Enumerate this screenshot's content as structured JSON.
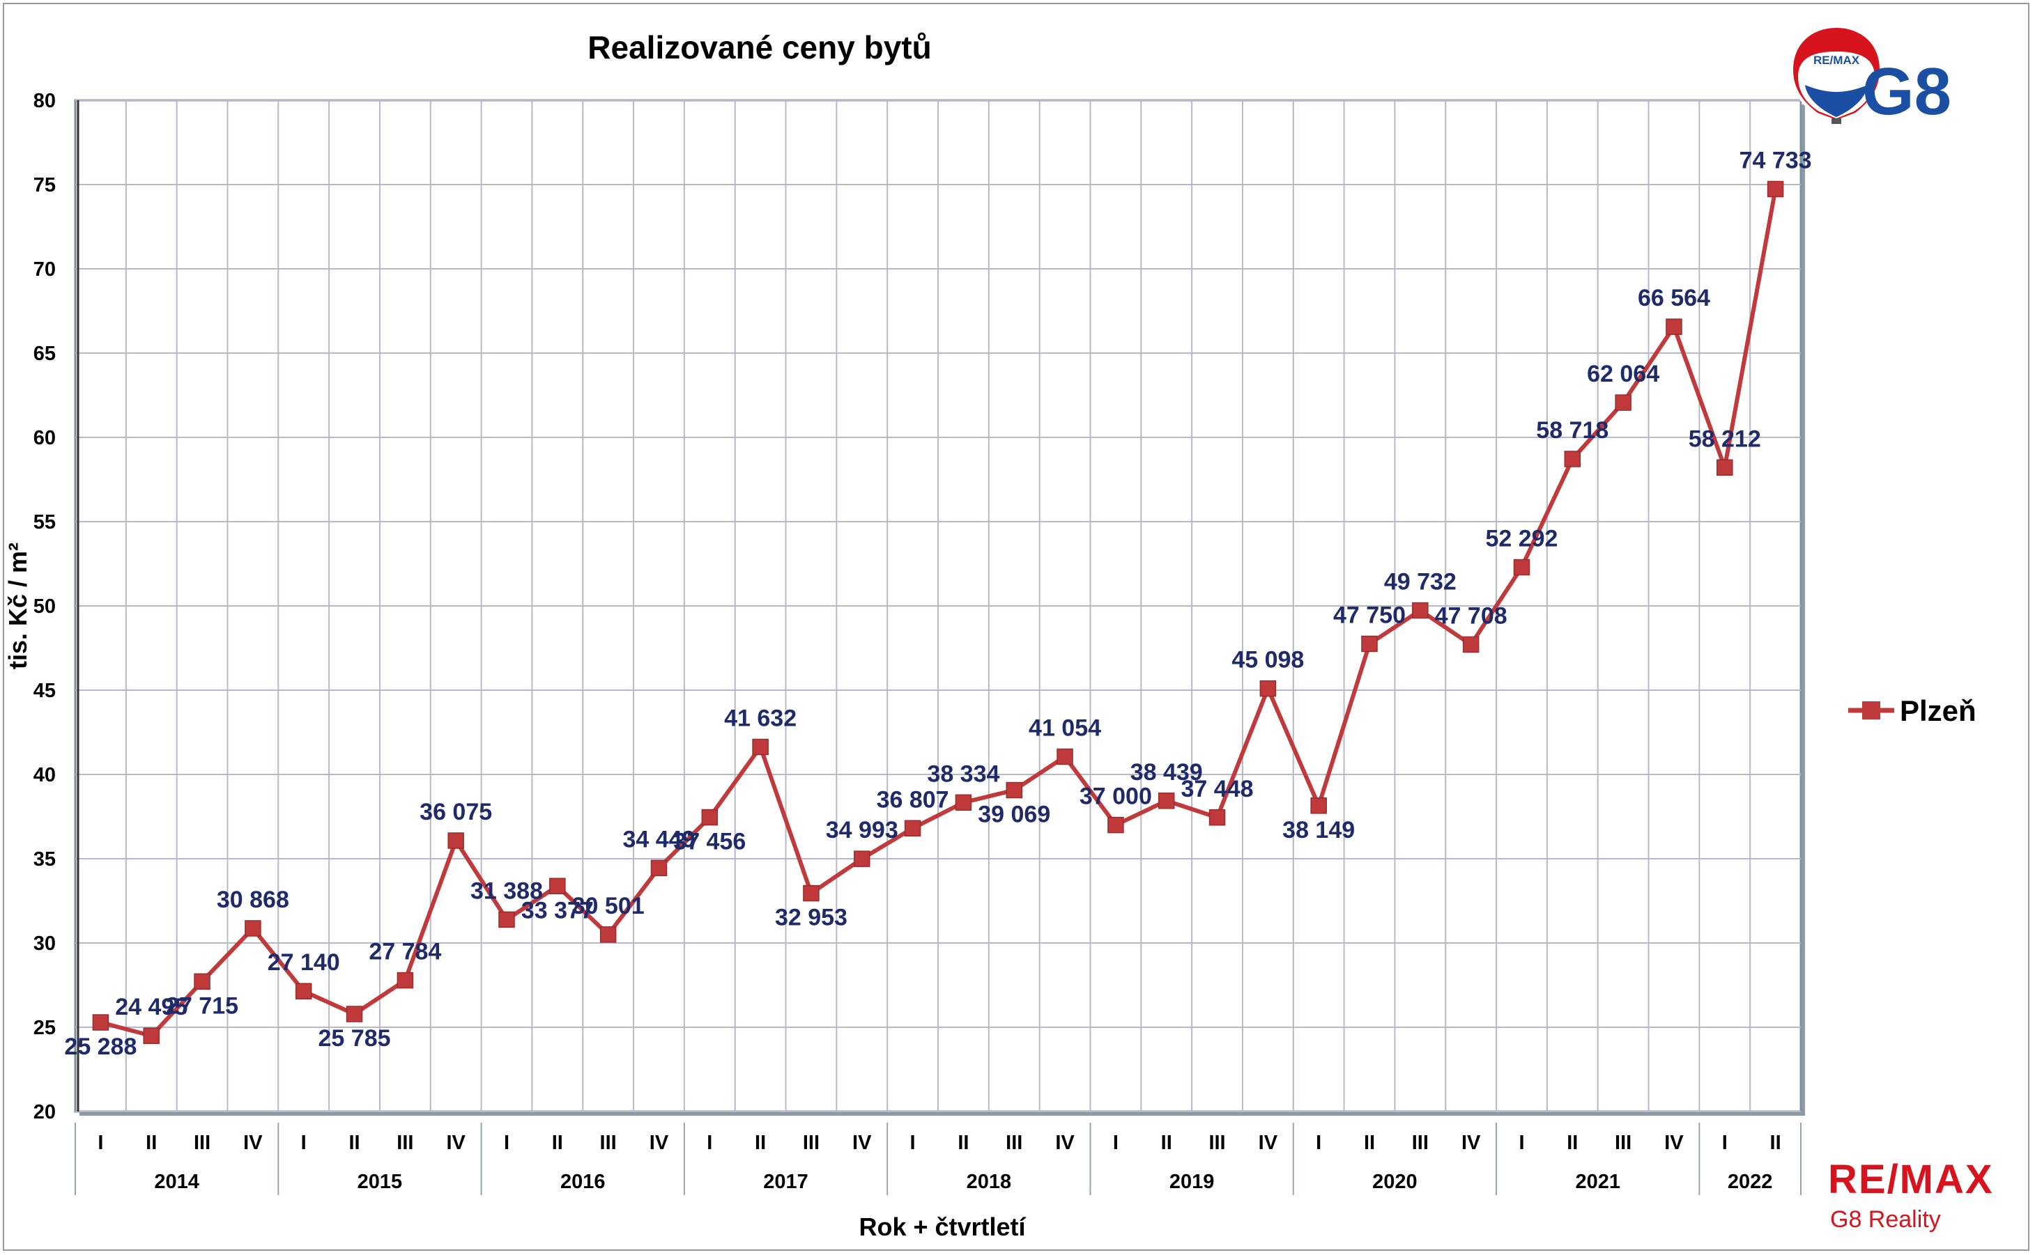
{
  "chart_data": {
    "type": "line",
    "title": "Realizované ceny bytů",
    "xlabel": "Rok + čtvrtletí",
    "ylabel": "tis. Kč / m²",
    "ylim": [
      20,
      80
    ],
    "yticks": [
      "20",
      "25",
      "30",
      "35",
      "40",
      "45",
      "50",
      "55",
      "60",
      "65",
      "70",
      "75",
      "80"
    ],
    "grid": true,
    "legend_position": "right",
    "quarters": [
      "I",
      "II",
      "III",
      "IV",
      "I",
      "II",
      "III",
      "IV",
      "I",
      "II",
      "III",
      "IV",
      "I",
      "II",
      "III",
      "IV",
      "I",
      "II",
      "III",
      "IV",
      "I",
      "II",
      "III",
      "IV",
      "I",
      "II",
      "III",
      "IV",
      "I",
      "II",
      "III",
      "IV",
      "I",
      "II"
    ],
    "years": [
      {
        "label": "2014",
        "quarters": 4
      },
      {
        "label": "2015",
        "quarters": 4
      },
      {
        "label": "2016",
        "quarters": 4
      },
      {
        "label": "2017",
        "quarters": 4
      },
      {
        "label": "2018",
        "quarters": 4
      },
      {
        "label": "2019",
        "quarters": 4
      },
      {
        "label": "2020",
        "quarters": 4
      },
      {
        "label": "2021",
        "quarters": 4
      },
      {
        "label": "2022",
        "quarters": 2
      }
    ],
    "series": [
      {
        "name": "Plzeň",
        "color": "#c0393b",
        "values": [
          25.288,
          24.495,
          27.715,
          30.868,
          27.14,
          25.785,
          27.784,
          36.075,
          31.388,
          33.377,
          30.501,
          34.449,
          37.456,
          41.632,
          32.953,
          34.993,
          36.807,
          38.334,
          39.069,
          41.054,
          37.0,
          38.439,
          37.448,
          45.098,
          38.149,
          47.75,
          49.732,
          47.708,
          52.292,
          58.718,
          62.064,
          66.564,
          58.212,
          74.733
        ],
        "labels": [
          "25 288",
          "24 495",
          "27 715",
          "30 868",
          "27 140",
          "25 785",
          "27 784",
          "36 075",
          "31 388",
          "33 377",
          "30 501",
          "34 449",
          "37 456",
          "41 632",
          "32 953",
          "34 993",
          "36 807",
          "38 334",
          "39 069",
          "41 054",
          "37 000",
          "38 439",
          "37 448",
          "45 098",
          "38 149",
          "47 750",
          "49 732",
          "47 708",
          "52 292",
          "58 718",
          "62 064",
          "66 564",
          "58 212",
          "74 733"
        ],
        "label_position": [
          "below",
          "above",
          "below",
          "above",
          "above",
          "below",
          "above",
          "above",
          "above",
          "below",
          "above",
          "above",
          "below",
          "above",
          "below",
          "above",
          "above",
          "above",
          "below",
          "above",
          "above",
          "above",
          "above",
          "above",
          "below",
          "above",
          "above",
          "above",
          "above",
          "above",
          "above",
          "above",
          "above",
          "above"
        ]
      }
    ]
  },
  "branding": {
    "top_logo_badge": "RE/MAX",
    "top_logo_text": "G8",
    "bottom_logo_main": "RE/MAX",
    "bottom_logo_sub": "G8 Reality",
    "brand_red": "#d7141d",
    "brand_blue": "#1b4fa3"
  }
}
